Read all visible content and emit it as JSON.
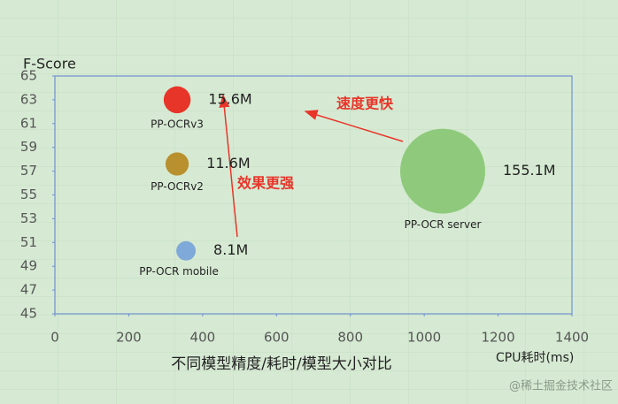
{
  "chart_data": {
    "type": "bubble",
    "title": "不同模型精度/耗时/模型大小对比",
    "x_label": "CPU耗时(ms)",
    "y_label": "F-Score",
    "xlim": [
      0,
      1400
    ],
    "xticks": [
      0,
      200,
      400,
      600,
      800,
      1000,
      1200,
      1400
    ],
    "ylim": [
      45,
      65
    ],
    "yticks": [
      45,
      47,
      49,
      51,
      53,
      55,
      57,
      59,
      61,
      63,
      65
    ],
    "series": [
      {
        "name": "PP-OCRv3",
        "color": "#e8352a",
        "x": [
          331
        ],
        "values": [
          63
        ],
        "size": [
          15.6
        ],
        "value_labels": [
          "15.6M"
        ]
      },
      {
        "name": "PP-OCRv2",
        "color": "#b8902e",
        "x": [
          331
        ],
        "values": [
          57.6
        ],
        "size": [
          11.6
        ],
        "value_labels": [
          "11.6M"
        ]
      },
      {
        "name": "PP-OCR mobile",
        "color": "#7ea9d8",
        "x": [
          355
        ],
        "values": [
          50.3
        ],
        "size": [
          8.1
        ],
        "value_labels": [
          "8.1M"
        ]
      },
      {
        "name": "PP-OCR server",
        "color": "#8fca7c",
        "x": [
          1050
        ],
        "values": [
          57
        ],
        "size": [
          155.1
        ],
        "value_labels": [
          "155.1M"
        ]
      }
    ],
    "annotations": [
      "速度更快",
      "效果更强"
    ],
    "watermark": "@稀土掘金技术社区"
  }
}
